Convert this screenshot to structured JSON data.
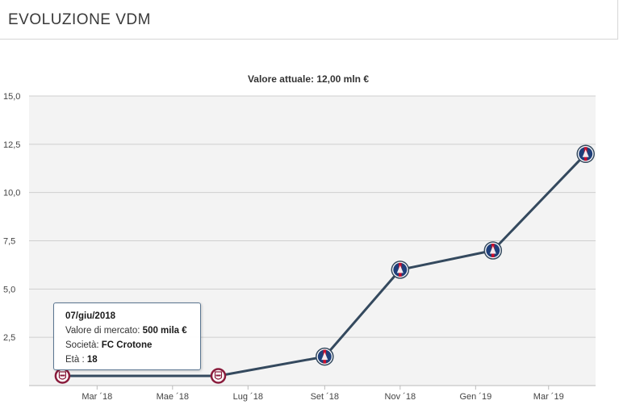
{
  "header": {
    "title": "EVOLUZIONE VDM"
  },
  "chart_data": {
    "type": "line",
    "title": "Valore attuale: 12,00 mln €",
    "xlabel": "",
    "ylabel": "",
    "ylim": [
      0,
      15
    ],
    "yticks": [
      "2,5",
      "5,0",
      "7,5",
      "10,0",
      "12,5",
      "15,0"
    ],
    "xticks": [
      "Mar ´18",
      "Mae ´18",
      "Lug ´18",
      "Set ´18",
      "Nov ´18",
      "Gen ´19",
      "Mar ´19"
    ],
    "x": [
      "2018-02-01",
      "2018-06-07",
      "2018-09-01",
      "2018-11-01",
      "2019-01-15",
      "2019-03-31"
    ],
    "values": [
      0.5,
      0.5,
      1.5,
      6.0,
      7.0,
      12.0
    ],
    "point_club": [
      "crotone",
      "crotone",
      "psg",
      "psg",
      "psg",
      "psg"
    ],
    "grid": true,
    "line_color": "#34495e",
    "colors": {
      "psg": "#1f3f7a",
      "crotone": "#8a1c3c"
    }
  },
  "tooltip": {
    "date": "07/giu/2018",
    "market_value_label": "Valore di mercato:",
    "market_value": "500 mila €",
    "club_label": "Società:",
    "club": "FC Crotone",
    "age_label": "Età :",
    "age": "18"
  }
}
